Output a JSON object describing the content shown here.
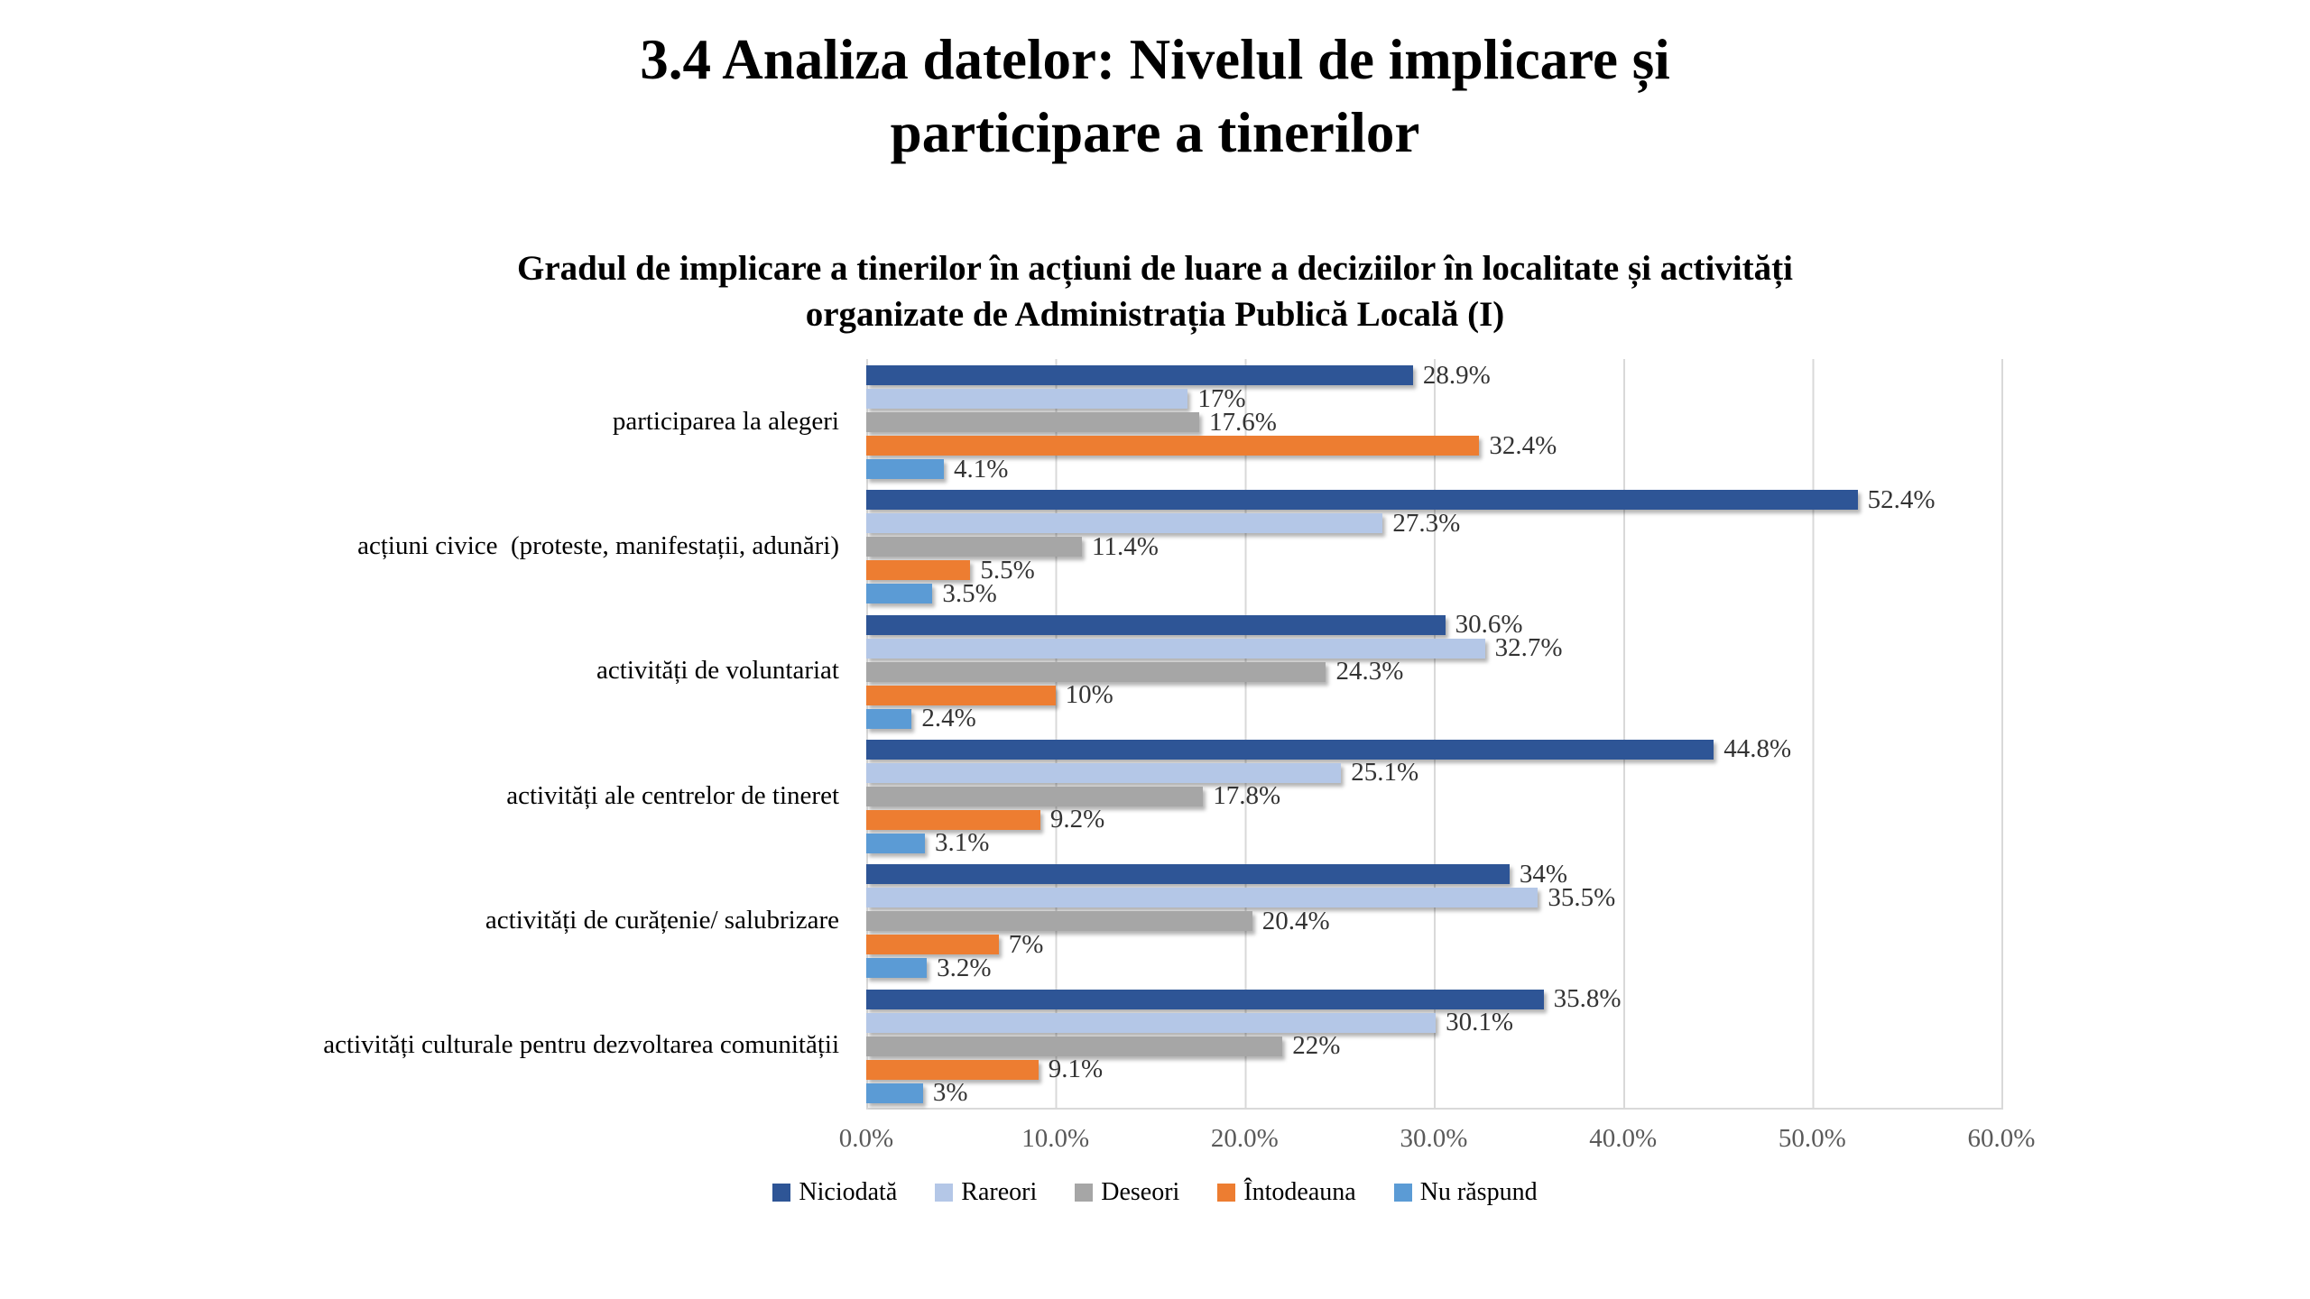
{
  "slide": {
    "title": "3.4 Analiza datelor: Nivelul de implicare și\nparticipare a tinerilor"
  },
  "chart_data": {
    "type": "bar",
    "orientation": "horizontal",
    "title": "Gradul de implicare a tinerilor în acțiuni de luare a deciziilor în localitate și activități\norganizate de Administrația Publică Locală (I)",
    "categories": [
      "participarea la alegeri",
      "acțiuni civice  (proteste, manifestații, adunări)",
      "activități de voluntariat",
      "activități ale centrelor de tineret",
      "activități de curățenie/ salubrizare",
      "activități culturale pentru dezvoltarea comunității"
    ],
    "series": [
      {
        "name": "Niciodată",
        "color": "#2E5596",
        "values": [
          28.9,
          52.4,
          30.6,
          44.8,
          34,
          35.8
        ],
        "labels": [
          "28.9%",
          "52.4%",
          "30.6%",
          "44.8%",
          "34%",
          "35.8%"
        ]
      },
      {
        "name": "Rareori",
        "color": "#B4C7E7",
        "values": [
          17,
          27.3,
          32.7,
          25.1,
          35.5,
          30.1
        ],
        "labels": [
          "17%",
          "27.3%",
          "32.7%",
          "25.1%",
          "35.5%",
          "30.1%"
        ]
      },
      {
        "name": "Deseori",
        "color": "#A6A6A6",
        "values": [
          17.6,
          11.4,
          24.3,
          17.8,
          20.4,
          22
        ],
        "labels": [
          "17.6%",
          "11.4%",
          "24.3%",
          "17.8%",
          "20.4%",
          "22%"
        ]
      },
      {
        "name": "Întodeauna",
        "color": "#ED7D31",
        "values": [
          32.4,
          5.5,
          10,
          9.2,
          7,
          9.1
        ],
        "labels": [
          "32.4%",
          "5.5%",
          "10%",
          "9.2%",
          "7%",
          "9.1%"
        ]
      },
      {
        "name": "Nu răspund",
        "color": "#5B9BD5",
        "values": [
          4.1,
          3.5,
          2.4,
          3.1,
          3.2,
          3
        ],
        "labels": [
          "4.1%",
          "3.5%",
          "2.4%",
          "3.1%",
          "3.2%",
          "3%"
        ]
      }
    ],
    "xlabel": "",
    "ylabel": "",
    "x_axis": {
      "ticks": [
        "0.0%",
        "10.0%",
        "20.0%",
        "30.0%",
        "40.0%",
        "50.0%",
        "60.0%"
      ],
      "min": 0,
      "max": 60,
      "grid": true
    },
    "legend": {
      "position": "bottom",
      "entries": [
        "Niciodată",
        "Rareori",
        "Deseori",
        "Întodeauna",
        "Nu răspund"
      ]
    },
    "colors": {
      "grid": "#D9D9D9",
      "axis_text": "#595959",
      "data_label": "#333333",
      "background": "#FFFFFF"
    }
  }
}
